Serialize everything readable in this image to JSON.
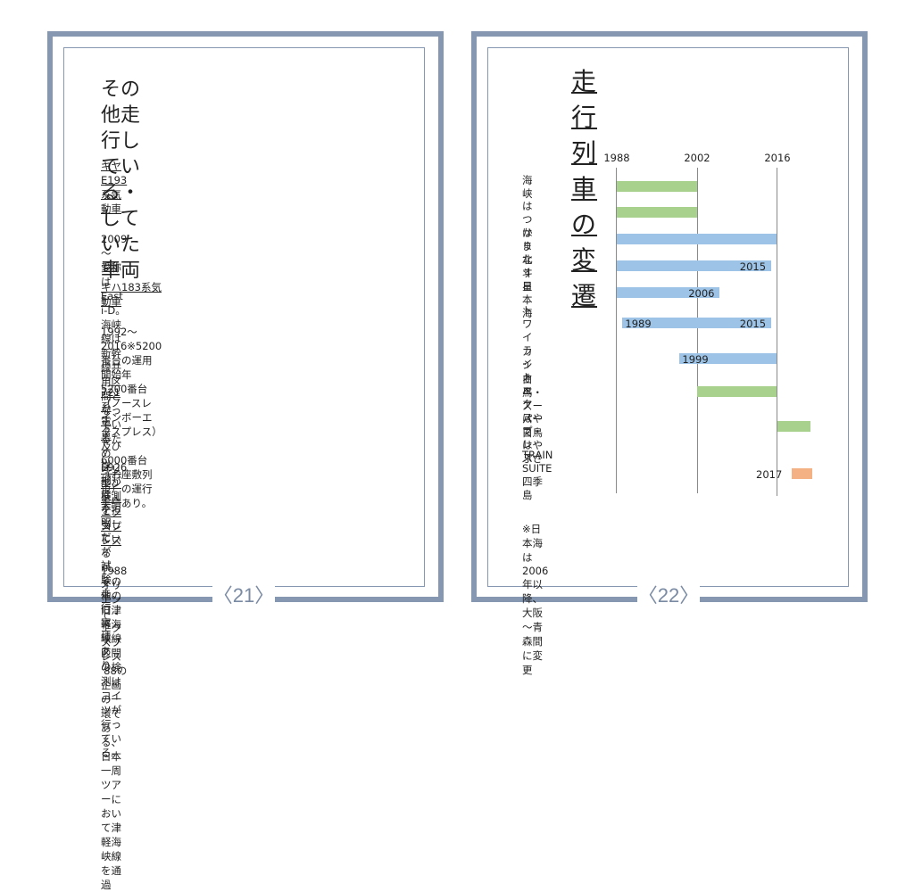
{
  "left_page": {
    "title": "その他走行している・\nしていた車両",
    "title_line1": "その他走行している・",
    "title_line2": "していた車両",
    "sections": [
      {
        "heading": "キヤE193系気動車",
        "body": "2009～\n愛称はEast i-D。海峡線は新幹線共用区間となってい\nるためE926形が検測を担当しているが、その他の旧津\n軽海峡線区間の検測はコイツが行っている。"
      },
      {
        "heading": "キハ183系気動車",
        "body": "1992～2016※5200番台の運用開始年\n5200番台（ノースレインボーエクスプレス）及び\n6000番台（お座敷列車）の運行実績あり。"
      },
      {
        "heading": "721系電車",
        "body": "詳細は不明だが試験走行実績あり"
      },
      {
        "heading": "オリエント・エクスプレス",
        "body": "1988\nオリエント・エクスプレス '88の企画の一環である、\n日本一周ツアーにおいて津軽海峡線を通過"
      }
    ],
    "page_number": "〈21〉"
  },
  "right_page": {
    "title": "走行列車の変遷",
    "note": "※日本海は2006年以降、大阪～青森間に変更",
    "page_number": "〈22〉"
  },
  "colors": {
    "frame": "#8597b1",
    "green": "#a9d18e",
    "blue": "#9dc3e6",
    "orange": "#f4b183"
  },
  "chart_data": {
    "type": "bar",
    "subtype": "timeline-gantt",
    "title": "走行列車の変遷",
    "x_ticks": [
      "1988",
      "2002",
      "2016"
    ],
    "xlim": [
      1988,
      2022
    ],
    "grid": true,
    "categories": [
      "海峡",
      "はつかり",
      "はまなす",
      "北斗星",
      "日本海",
      "トワイライトエクスプレス",
      "カシオペア",
      "白鳥・スーパー白鳥",
      "はやて・はやぶさ",
      "TRAIN SUITE 四季島"
    ],
    "series": [
      {
        "label": "海峡",
        "display": "海峡",
        "start": 1988,
        "end": 2002,
        "color": "green",
        "start_label": "",
        "end_label": ""
      },
      {
        "label": "はつかり",
        "display": "はつかり",
        "start": 1988,
        "end": 2002,
        "color": "green",
        "start_label": "",
        "end_label": ""
      },
      {
        "label": "はまなす",
        "display": "はまなす",
        "start": 1988,
        "end": 2016,
        "color": "blue",
        "start_label": "",
        "end_label": ""
      },
      {
        "label": "北斗星",
        "display": "北斗星",
        "start": 1988,
        "end": 2015,
        "color": "blue",
        "start_label": "",
        "end_label": "2015"
      },
      {
        "label": "日本海",
        "display": "日本海",
        "start": 1988,
        "end": 2006,
        "color": "blue",
        "start_label": "",
        "end_label": "2006"
      },
      {
        "label": "トワイライトエクスプレス",
        "display": "トワイライト\nエクスプレス",
        "start": 1989,
        "end": 2015,
        "color": "blue",
        "start_label": "1989",
        "end_label": "2015"
      },
      {
        "label": "カシオペア",
        "display": "カシオペア",
        "start": 1999,
        "end": 2016,
        "color": "blue",
        "start_label": "1999",
        "end_label": ""
      },
      {
        "label": "白鳥・スーパー白鳥",
        "display": "白鳥・\nスーパー白鳥",
        "start": 2002,
        "end": 2016,
        "color": "green",
        "start_label": "",
        "end_label": ""
      },
      {
        "label": "はやて・はやぶさ",
        "display": "はやて・\nはやぶさ",
        "start": 2016,
        "end": 2022,
        "color": "green",
        "start_label": "",
        "end_label": ""
      },
      {
        "label": "TRAIN SUITE 四季島",
        "display": "TRAIN SUITE\n四季島",
        "start": 2017,
        "end": 2021,
        "color": "orange",
        "start_label": "2017",
        "end_label": ""
      }
    ],
    "annotation": "※日本海は2006年以降、大阪～青森間に変更"
  }
}
